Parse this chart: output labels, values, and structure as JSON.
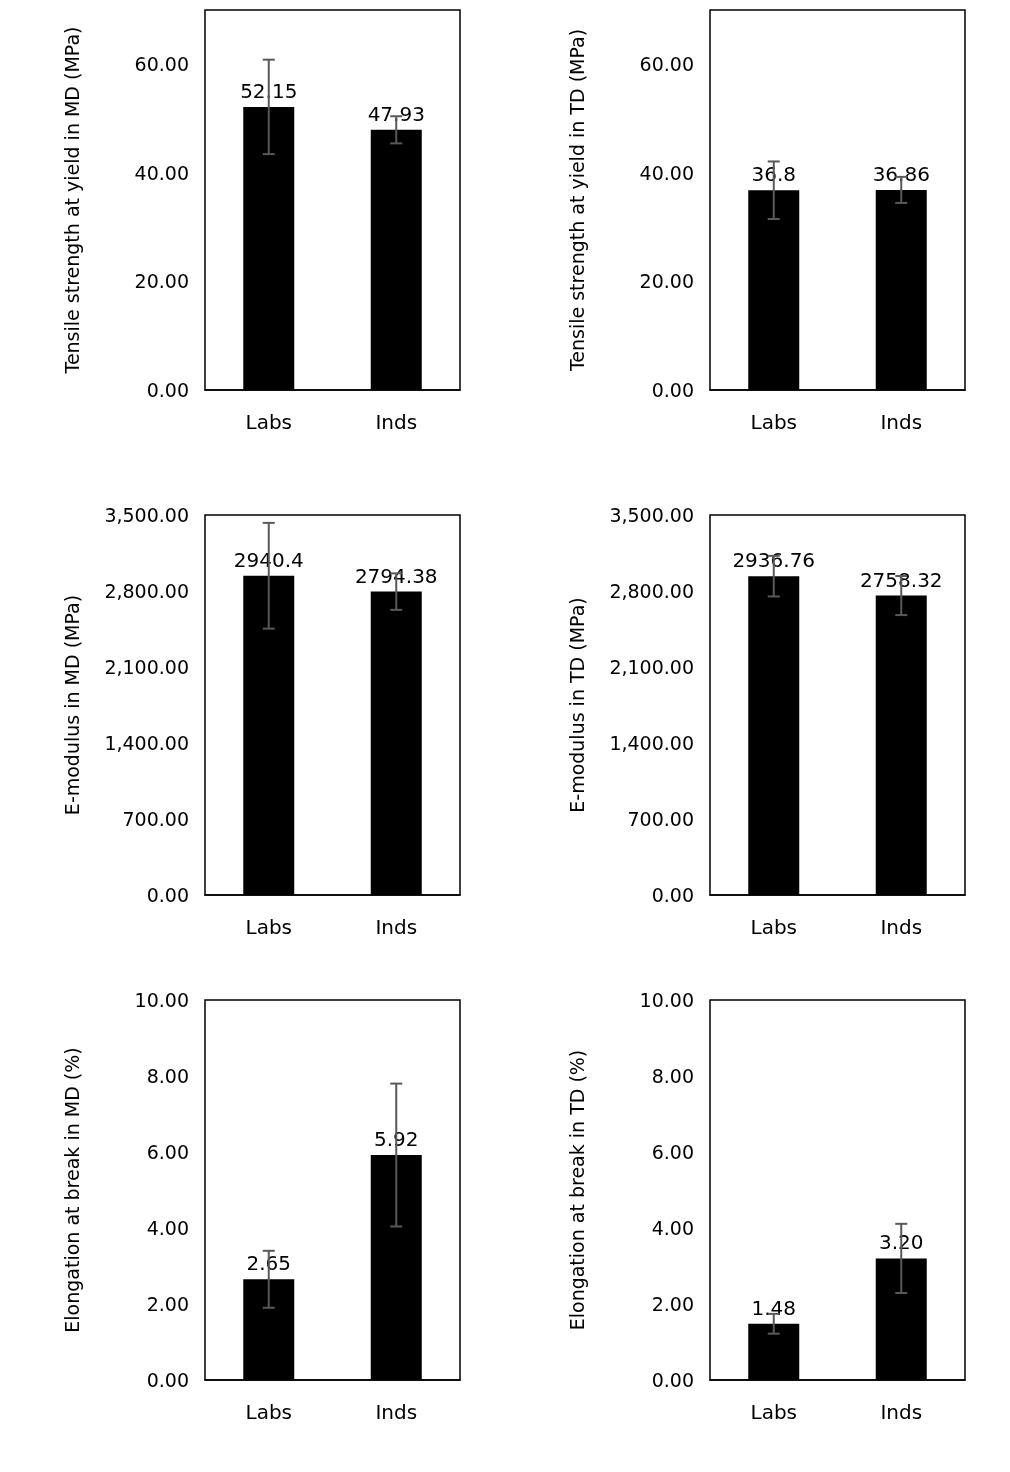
{
  "chart_data": [
    {
      "type": "bar",
      "ylabel": "Tensile strength at yield in MD (MPa)",
      "categories": [
        "Labs",
        "Inds"
      ],
      "values": [
        52.15,
        47.93
      ],
      "value_labels": [
        "52.15",
        "47.93"
      ],
      "errors": [
        8.7,
        2.5
      ],
      "color": "#000000",
      "ylim": [
        0,
        70
      ],
      "yticks": [
        {
          "value": 0,
          "label": "0.00"
        },
        {
          "value": 20,
          "label": "20.00"
        },
        {
          "value": 40,
          "label": "40.00"
        },
        {
          "value": 60,
          "label": "60.00"
        }
      ],
      "grid": false
    },
    {
      "type": "bar",
      "ylabel": "Tensile strength at yield in TD (MPa)",
      "categories": [
        "Labs",
        "Inds"
      ],
      "values": [
        36.8,
        36.86
      ],
      "value_labels": [
        "36.8",
        "36.86"
      ],
      "errors": [
        5.3,
        2.4
      ],
      "color": "#000000",
      "ylim": [
        0,
        70
      ],
      "yticks": [
        {
          "value": 0,
          "label": "0.00"
        },
        {
          "value": 20,
          "label": "20.00"
        },
        {
          "value": 40,
          "label": "40.00"
        },
        {
          "value": 60,
          "label": "60.00"
        }
      ],
      "grid": false
    },
    {
      "type": "bar",
      "ylabel": "E-modulus in MD (MPa)",
      "categories": [
        "Labs",
        "Inds"
      ],
      "values": [
        2940.4,
        2794.38
      ],
      "value_labels": [
        "2940.4",
        "2794.38"
      ],
      "errors": [
        487,
        168
      ],
      "color": "#000000",
      "ylim": [
        0,
        3500
      ],
      "yticks": [
        {
          "value": 0,
          "label": "0.00"
        },
        {
          "value": 700,
          "label": "700.00"
        },
        {
          "value": 1400,
          "label": "1,400.00"
        },
        {
          "value": 2100,
          "label": "2,100.00"
        },
        {
          "value": 2800,
          "label": "2,800.00"
        },
        {
          "value": 3500,
          "label": "3,500.00"
        }
      ],
      "grid": false
    },
    {
      "type": "bar",
      "ylabel": "E-modulus in TD (MPa)",
      "categories": [
        "Labs",
        "Inds"
      ],
      "values": [
        2936.76,
        2758.32
      ],
      "value_labels": [
        "2936.76",
        "2758.32"
      ],
      "errors": [
        187,
        180
      ],
      "color": "#000000",
      "ylim": [
        0,
        3500
      ],
      "yticks": [
        {
          "value": 0,
          "label": "0.00"
        },
        {
          "value": 700,
          "label": "700.00"
        },
        {
          "value": 1400,
          "label": "1,400.00"
        },
        {
          "value": 2100,
          "label": "2,100.00"
        },
        {
          "value": 2800,
          "label": "2,800.00"
        },
        {
          "value": 3500,
          "label": "3,500.00"
        }
      ],
      "grid": false
    },
    {
      "type": "bar",
      "ylabel": "Elongation at break in MD (%)",
      "categories": [
        "Labs",
        "Inds"
      ],
      "values": [
        2.65,
        5.92
      ],
      "value_labels": [
        "2.65",
        "5.92"
      ],
      "errors": [
        0.75,
        1.88
      ],
      "color": "#000000",
      "ylim": [
        0,
        10
      ],
      "yticks": [
        {
          "value": 0,
          "label": "0.00"
        },
        {
          "value": 2,
          "label": "2.00"
        },
        {
          "value": 4,
          "label": "4.00"
        },
        {
          "value": 6,
          "label": "6.00"
        },
        {
          "value": 8,
          "label": "8.00"
        },
        {
          "value": 10,
          "label": "10.00"
        }
      ],
      "grid": false
    },
    {
      "type": "bar",
      "ylabel": "Elongation at break in TD (%)",
      "categories": [
        "Labs",
        "Inds"
      ],
      "values": [
        1.48,
        3.2
      ],
      "value_labels": [
        "1.48",
        "3.20"
      ],
      "errors": [
        0.26,
        0.91
      ],
      "color": "#000000",
      "ylim": [
        0,
        10
      ],
      "yticks": [
        {
          "value": 0,
          "label": "0.00"
        },
        {
          "value": 2,
          "label": "2.00"
        },
        {
          "value": 4,
          "label": "4.00"
        },
        {
          "value": 6,
          "label": "6.00"
        },
        {
          "value": 8,
          "label": "8.00"
        },
        {
          "value": 10,
          "label": "10.00"
        }
      ],
      "grid": false
    }
  ]
}
